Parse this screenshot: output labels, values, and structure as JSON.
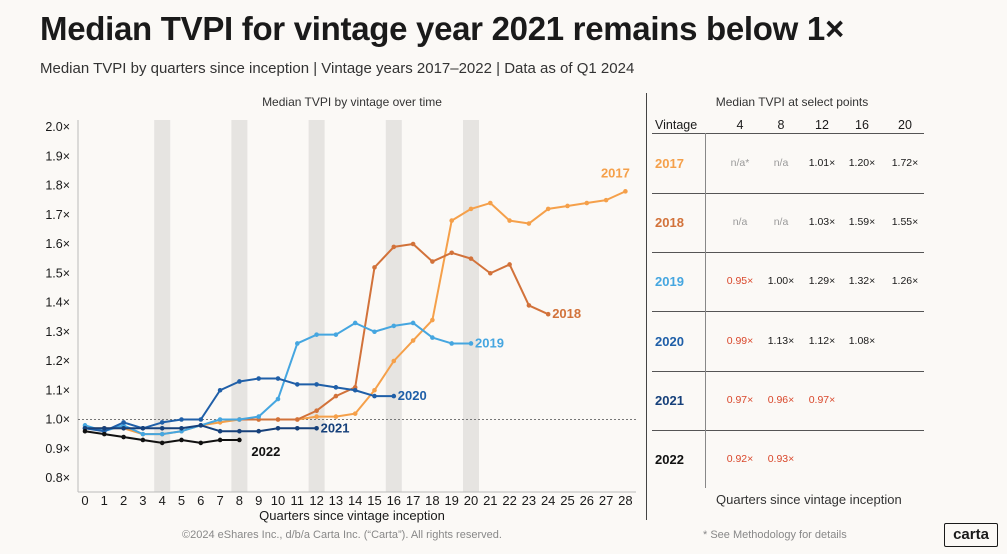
{
  "title": "Median TVPI for vintage year 2021 remains below 1×",
  "subtitle": "Median TVPI by quarters since inception  |  Vintage years 2017–2022  |  Data as of Q1 2024",
  "chart_data": {
    "type": "line",
    "title": "Median TVPI by vintage over time",
    "xlabel": "Quarters since vintage inception",
    "ylabel": "",
    "xlim": [
      0,
      28
    ],
    "ylim": [
      0.78,
      2.0
    ],
    "yticks": [
      0.8,
      0.9,
      1.0,
      1.1,
      1.2,
      1.3,
      1.4,
      1.5,
      1.6,
      1.7,
      1.8,
      1.9,
      2.0
    ],
    "ytick_labels": [
      "0.8×",
      "0.9×",
      "1.0×",
      "1.1×",
      "1.2×",
      "1.3×",
      "1.4×",
      "1.5×",
      "1.6×",
      "1.7×",
      "1.8×",
      "1.9×",
      "2.0×"
    ],
    "xticks": [
      "0",
      "1",
      "2",
      "3",
      "4",
      "5",
      "6",
      "7",
      "8",
      "9",
      "10",
      "11",
      "12",
      "13",
      "14",
      "15",
      "16",
      "17",
      "18",
      "19",
      "20",
      "21",
      "22",
      "23",
      "24",
      "25",
      "26",
      "27",
      "28"
    ],
    "highlight_quarters": [
      4,
      8,
      12,
      16,
      20
    ],
    "reference_line": 1.0,
    "series": [
      {
        "name": "2017",
        "color": "#f5a04a",
        "x": [
          0,
          1,
          2,
          3,
          4,
          5,
          6,
          7,
          8,
          9,
          10,
          11,
          12,
          13,
          14,
          15,
          16,
          17,
          18,
          19,
          20,
          21,
          22,
          23,
          24,
          25,
          26,
          27,
          28
        ],
        "values": [
          0.97,
          0.97,
          0.97,
          0.95,
          0.95,
          0.96,
          0.98,
          0.99,
          1.0,
          1.0,
          1.0,
          1.0,
          1.01,
          1.01,
          1.02,
          1.1,
          1.2,
          1.27,
          1.34,
          1.68,
          1.72,
          1.74,
          1.68,
          1.67,
          1.72,
          1.73,
          1.74,
          1.75,
          1.78
        ]
      },
      {
        "name": "2018",
        "color": "#d2723a",
        "x": [
          8,
          9,
          10,
          11,
          12,
          13,
          14,
          15,
          16,
          17,
          18,
          19,
          20,
          21,
          22,
          23,
          24
        ],
        "values": [
          1.0,
          1.0,
          1.0,
          1.0,
          1.03,
          1.08,
          1.11,
          1.52,
          1.59,
          1.6,
          1.54,
          1.57,
          1.55,
          1.5,
          1.53,
          1.39,
          1.36
        ]
      },
      {
        "name": "2019",
        "color": "#45a6e0",
        "x": [
          0,
          1,
          2,
          3,
          4,
          5,
          6,
          7,
          8,
          9,
          10,
          11,
          12,
          13,
          14,
          15,
          16,
          17,
          18,
          19,
          20
        ],
        "values": [
          0.98,
          0.96,
          0.98,
          0.95,
          0.95,
          0.96,
          0.98,
          1.0,
          1.0,
          1.01,
          1.07,
          1.26,
          1.29,
          1.29,
          1.33,
          1.3,
          1.32,
          1.33,
          1.28,
          1.26,
          1.26
        ]
      },
      {
        "name": "2020",
        "color": "#1f5fa8",
        "x": [
          0,
          1,
          2,
          3,
          4,
          5,
          6,
          7,
          8,
          9,
          10,
          11,
          12,
          13,
          14,
          15,
          16
        ],
        "values": [
          0.97,
          0.96,
          0.99,
          0.97,
          0.99,
          1.0,
          1.0,
          1.1,
          1.13,
          1.14,
          1.14,
          1.12,
          1.12,
          1.11,
          1.1,
          1.08,
          1.08
        ]
      },
      {
        "name": "2021",
        "color": "#16407a",
        "x": [
          0,
          1,
          2,
          3,
          4,
          5,
          6,
          7,
          8,
          9,
          10,
          11,
          12
        ],
        "values": [
          0.97,
          0.97,
          0.97,
          0.97,
          0.97,
          0.97,
          0.98,
          0.96,
          0.96,
          0.96,
          0.97,
          0.97,
          0.97
        ]
      },
      {
        "name": "2022",
        "color": "#111111",
        "x": [
          0,
          1,
          2,
          3,
          4,
          5,
          6,
          7,
          8
        ],
        "values": [
          0.96,
          0.95,
          0.94,
          0.93,
          0.92,
          0.93,
          0.92,
          0.93,
          0.93
        ]
      }
    ]
  },
  "table": {
    "title": "Median TVPI at select points",
    "headers": [
      "Vintage",
      "4",
      "8",
      "12",
      "16",
      "20"
    ],
    "rows": [
      {
        "vintage": "2017",
        "color": "#f5a04a",
        "cells": [
          "n/a*",
          "n/a",
          "1.01×",
          "1.20×",
          "1.72×"
        ],
        "cell_colors": [
          "#999",
          "#999",
          "#1a1a1a",
          "#1a1a1a",
          "#1a1a1a"
        ]
      },
      {
        "vintage": "2018",
        "color": "#d2723a",
        "cells": [
          "n/a",
          "n/a",
          "1.03×",
          "1.59×",
          "1.55×"
        ],
        "cell_colors": [
          "#999",
          "#999",
          "#1a1a1a",
          "#1a1a1a",
          "#1a1a1a"
        ]
      },
      {
        "vintage": "2019",
        "color": "#45a6e0",
        "cells": [
          "0.95×",
          "1.00×",
          "1.29×",
          "1.32×",
          "1.26×"
        ],
        "cell_colors": [
          "#d9472b",
          "#1a1a1a",
          "#1a1a1a",
          "#1a1a1a",
          "#1a1a1a"
        ]
      },
      {
        "vintage": "2020",
        "color": "#1f5fa8",
        "cells": [
          "0.99×",
          "1.13×",
          "1.12×",
          "1.08×",
          ""
        ],
        "cell_colors": [
          "#d9472b",
          "#1a1a1a",
          "#1a1a1a",
          "#1a1a1a",
          "#1a1a1a"
        ]
      },
      {
        "vintage": "2021",
        "color": "#16407a",
        "cells": [
          "0.97×",
          "0.96×",
          "0.97×",
          "",
          ""
        ],
        "cell_colors": [
          "#d9472b",
          "#d9472b",
          "#d9472b",
          "#1a1a1a",
          "#1a1a1a"
        ]
      },
      {
        "vintage": "2022",
        "color": "#111111",
        "cells": [
          "0.92×",
          "0.93×",
          "",
          "",
          ""
        ],
        "cell_colors": [
          "#d9472b",
          "#d9472b",
          "#1a1a1a",
          "#1a1a1a",
          "#1a1a1a"
        ]
      }
    ],
    "footer": "Quarters since vintage inception"
  },
  "footer": {
    "copyright": "©2024 eShares Inc., d/b/a Carta Inc. (“Carta”). All rights reserved.",
    "methodology": "* See Methodology for details",
    "logo": "carta"
  }
}
